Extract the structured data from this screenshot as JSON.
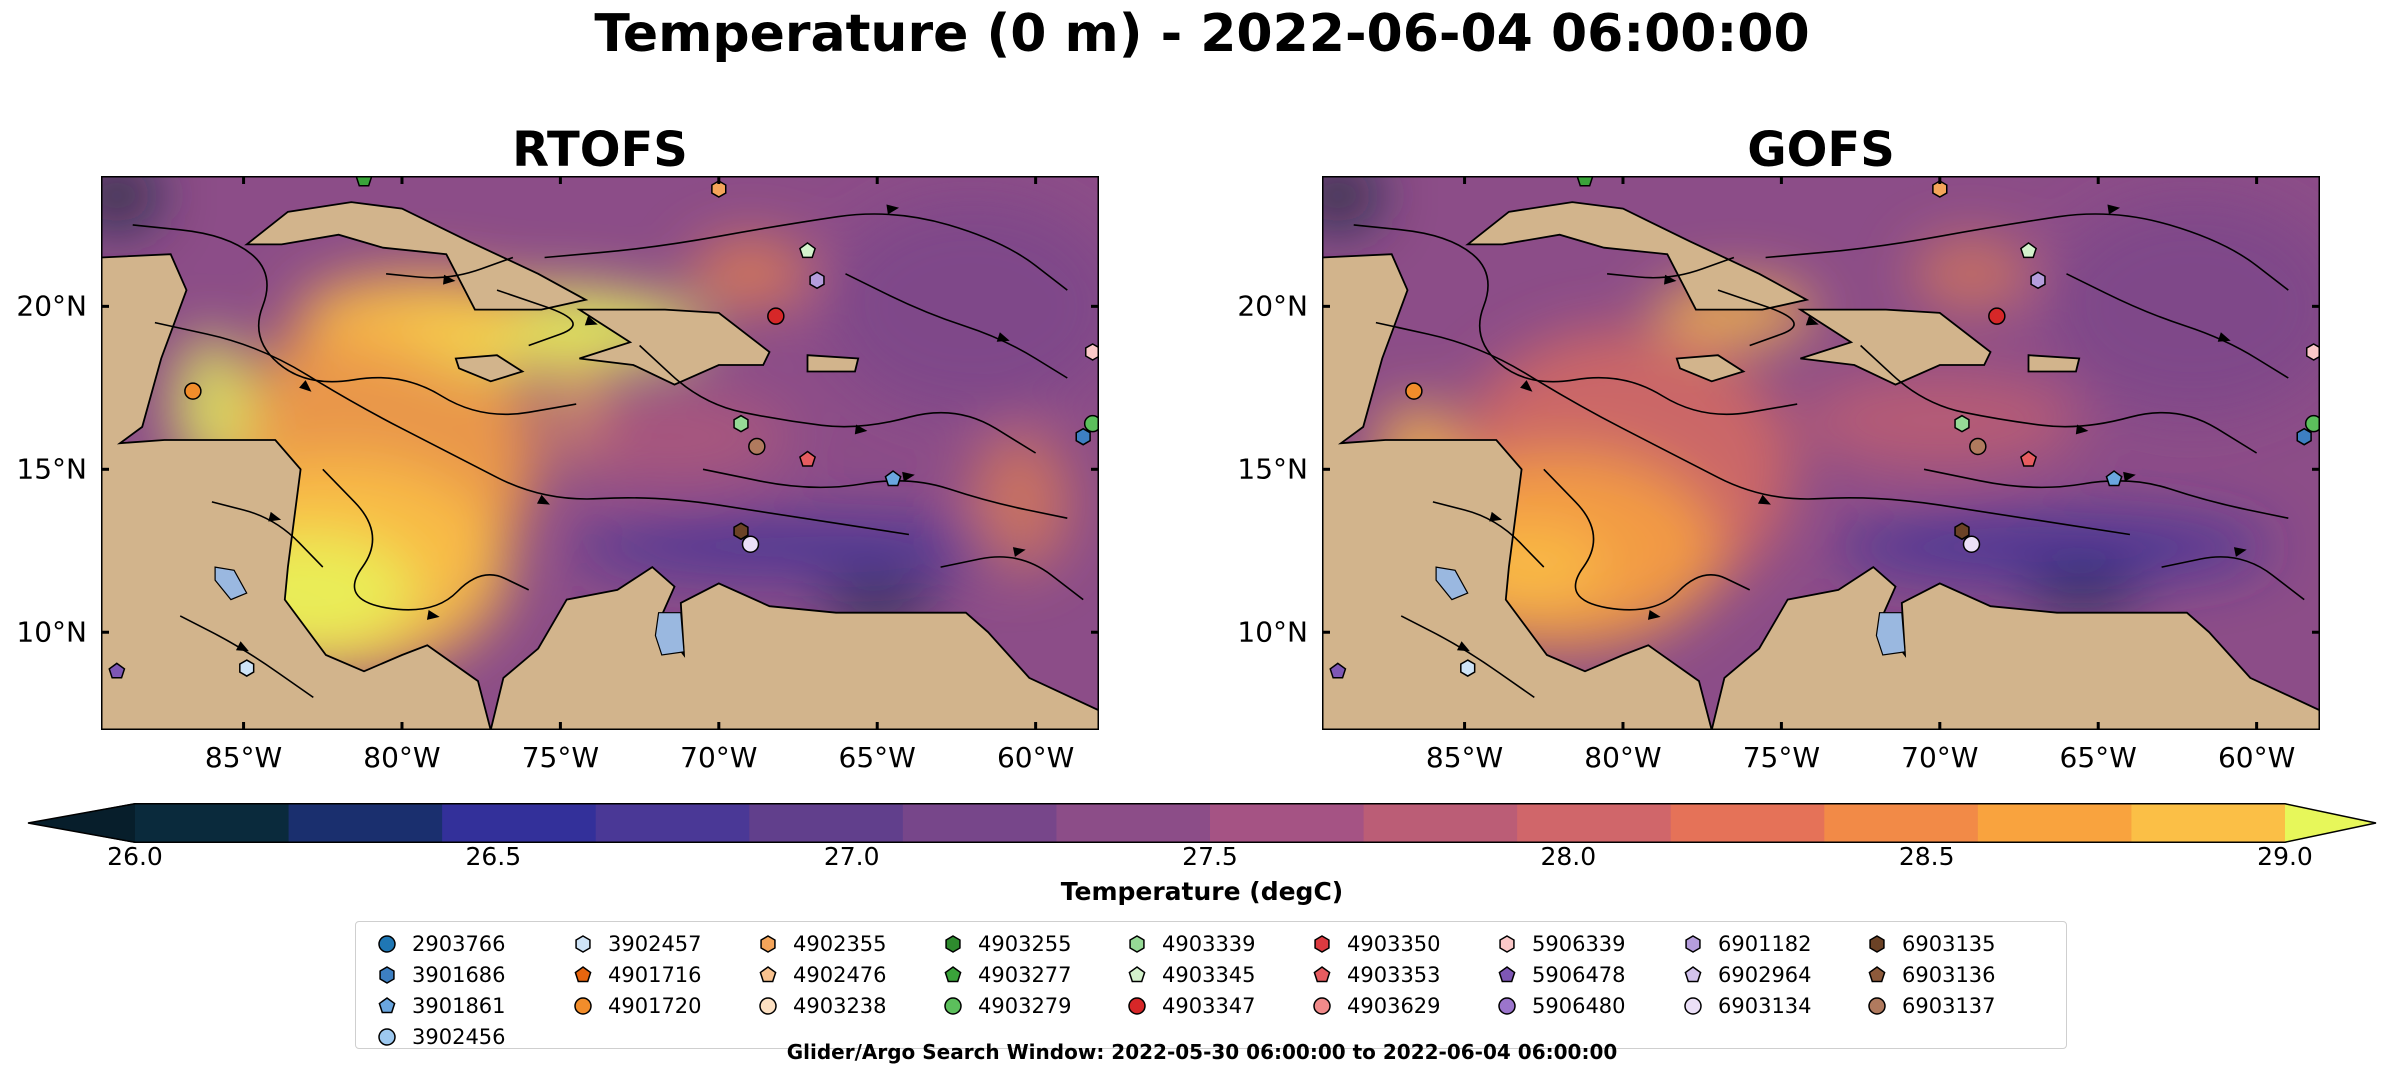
{
  "chart_data": {
    "type": "heatmap",
    "title": "Temperature (0 m) - 2022-06-04 06:00:00",
    "panels": [
      {
        "title": "RTOFS"
      },
      {
        "title": "GOFS"
      }
    ],
    "map": {
      "lon_range": [
        -89.5,
        -58.0
      ],
      "lat_range": [
        7.0,
        24.0
      ],
      "x_ticks": [
        {
          "value": -85,
          "label": "85°W"
        },
        {
          "value": -80,
          "label": "80°W"
        },
        {
          "value": -75,
          "label": "75°W"
        },
        {
          "value": -70,
          "label": "70°W"
        },
        {
          "value": -65,
          "label": "65°W"
        },
        {
          "value": -60,
          "label": "60°W"
        }
      ],
      "y_ticks": [
        {
          "value": 20,
          "label": "20°N"
        },
        {
          "value": 15,
          "label": "15°N"
        },
        {
          "value": 10,
          "label": "10°N"
        }
      ],
      "land_color": "#d2b48c",
      "lake_color": "#9ab8e0",
      "overlays": [
        "streamlines",
        "coastlines",
        "borders"
      ]
    },
    "colorbar": {
      "label": "Temperature (degC)",
      "range": [
        26.0,
        29.0
      ],
      "ticks": [
        "26.0",
        "26.5",
        "27.0",
        "27.5",
        "28.0",
        "28.5",
        "29.0"
      ],
      "levels": [
        "#0a2a3c",
        "#1a2f6e",
        "#33309a",
        "#4a3896",
        "#613f8c",
        "#77468a",
        "#8c4d88",
        "#a55384",
        "#bb5d76",
        "#d0666a",
        "#e57258",
        "#f28a47",
        "#f9a33e",
        "#fbbf46"
      ],
      "extend_low_color": "#071e2b",
      "extend_high_color": "#e7f75a"
    },
    "legend": {
      "columns": [
        [
          {
            "id": "2903766",
            "color": "#1f77b4",
            "marker": "circle"
          },
          {
            "id": "3901686",
            "color": "#3d7fc2",
            "marker": "hexagon"
          },
          {
            "id": "3901861",
            "color": "#6aa6df",
            "marker": "pentagon"
          },
          {
            "id": "3902456",
            "color": "#9dc8ef",
            "marker": "circle"
          }
        ],
        [
          {
            "id": "3902457",
            "color": "#cfe4f7",
            "marker": "hexagon"
          },
          {
            "id": "4901716",
            "color": "#e8650e",
            "marker": "pentagon"
          },
          {
            "id": "4901720",
            "color": "#f28d2b",
            "marker": "circle"
          }
        ],
        [
          {
            "id": "4902355",
            "color": "#f5a55a",
            "marker": "hexagon"
          },
          {
            "id": "4902476",
            "color": "#f8c28f",
            "marker": "pentagon"
          },
          {
            "id": "4903238",
            "color": "#fde0c2",
            "marker": "circle"
          }
        ],
        [
          {
            "id": "4903255",
            "color": "#2e8b2e",
            "marker": "hexagon"
          },
          {
            "id": "4903277",
            "color": "#3aa33a",
            "marker": "pentagon"
          },
          {
            "id": "4903279",
            "color": "#5cbf5c",
            "marker": "circle"
          }
        ],
        [
          {
            "id": "4903339",
            "color": "#96da96",
            "marker": "hexagon"
          },
          {
            "id": "4903345",
            "color": "#d4f2cc",
            "marker": "pentagon"
          },
          {
            "id": "4903347",
            "color": "#d62728",
            "marker": "circle"
          }
        ],
        [
          {
            "id": "4903350",
            "color": "#dc3a40",
            "marker": "hexagon"
          },
          {
            "id": "4903353",
            "color": "#e65c60",
            "marker": "pentagon"
          },
          {
            "id": "4903629",
            "color": "#f08a8a",
            "marker": "circle"
          }
        ],
        [
          {
            "id": "5906339",
            "color": "#fbc8c8",
            "marker": "hexagon"
          },
          {
            "id": "5906478",
            "color": "#7e57b5",
            "marker": "pentagon"
          },
          {
            "id": "5906480",
            "color": "#9b75cc",
            "marker": "circle"
          }
        ],
        [
          {
            "id": "6901182",
            "color": "#b59ddc",
            "marker": "hexagon"
          },
          {
            "id": "6902964",
            "color": "#d2c2ec",
            "marker": "pentagon"
          },
          {
            "id": "6903134",
            "color": "#ebdff7",
            "marker": "circle"
          }
        ],
        [
          {
            "id": "6903135",
            "color": "#6b4226",
            "marker": "hexagon"
          },
          {
            "id": "6903136",
            "color": "#8d5a3b",
            "marker": "pentagon"
          },
          {
            "id": "6903137",
            "color": "#b07a5e",
            "marker": "circle"
          }
        ]
      ]
    },
    "floats": [
      {
        "lon": -81.2,
        "lat": 23.9,
        "color": "#3aa33a",
        "marker": "pentagon"
      },
      {
        "lon": -70.0,
        "lat": 23.6,
        "color": "#f5a55a",
        "marker": "hexagon"
      },
      {
        "lon": -67.2,
        "lat": 21.7,
        "color": "#d4f2cc",
        "marker": "pentagon"
      },
      {
        "lon": -66.9,
        "lat": 20.8,
        "color": "#b59ddc",
        "marker": "hexagon"
      },
      {
        "lon": -68.2,
        "lat": 19.7,
        "color": "#d62728",
        "marker": "circle"
      },
      {
        "lon": -58.2,
        "lat": 18.6,
        "color": "#fbc8c8",
        "marker": "hexagon"
      },
      {
        "lon": -86.6,
        "lat": 17.4,
        "color": "#f28d2b",
        "marker": "circle"
      },
      {
        "lon": -69.3,
        "lat": 16.4,
        "color": "#96da96",
        "marker": "hexagon"
      },
      {
        "lon": -58.2,
        "lat": 16.4,
        "color": "#5cbf5c",
        "marker": "circle"
      },
      {
        "lon": -58.5,
        "lat": 16.0,
        "color": "#3d7fc2",
        "marker": "hexagon"
      },
      {
        "lon": -68.8,
        "lat": 15.7,
        "color": "#b07a5e",
        "marker": "circle"
      },
      {
        "lon": -67.2,
        "lat": 15.3,
        "color": "#e65c60",
        "marker": "pentagon"
      },
      {
        "lon": -64.5,
        "lat": 14.7,
        "color": "#6aa6df",
        "marker": "pentagon"
      },
      {
        "lon": -69.3,
        "lat": 13.1,
        "color": "#6b4226",
        "marker": "hexagon"
      },
      {
        "lon": -69.0,
        "lat": 12.7,
        "color": "#ebdff7",
        "marker": "circle"
      },
      {
        "lon": -89.0,
        "lat": 8.8,
        "color": "#7e57b5",
        "marker": "pentagon"
      },
      {
        "lon": -84.9,
        "lat": 8.9,
        "color": "#cfe4f7",
        "marker": "hexagon"
      }
    ]
  },
  "footnote": "Glider/Argo Search Window: 2022-05-30 06:00:00 to 2022-06-04 06:00:00"
}
